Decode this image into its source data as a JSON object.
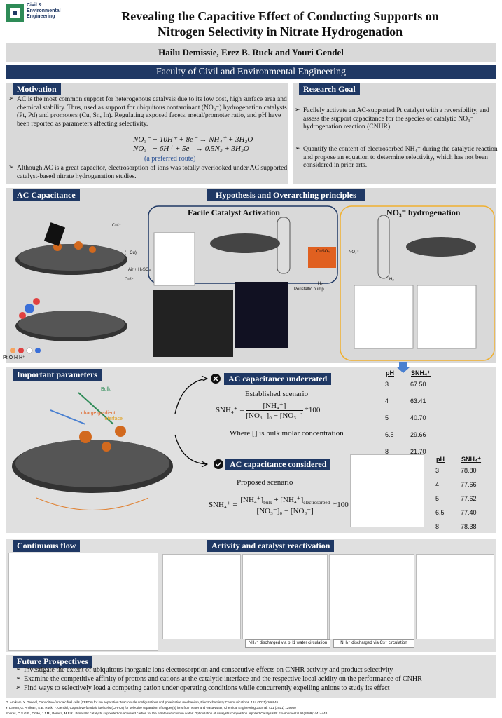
{
  "header": {
    "logo": [
      "Civil &",
      "Environmental",
      "Engineering"
    ],
    "title": [
      "Revealing the Capacitive Effect of Conducting Supports on",
      "Nitrogen Selectivity in Nitrate Hydrogenation"
    ],
    "authors": "Hailu Demissie, Erez B. Ruck and  Youri Gendel",
    "faculty": "Faculty of Civil and Environmental Engineering"
  },
  "motivation": {
    "heading": "Motivation",
    "bullet1": "AC is the most common support for heterogenous catalysis due to its low cost, high surface area and chemical stability. Thus, used as support for ubiquitous contaminant (NO₃⁻) hydrogenation catalysts (Pt, Pd) and promoters (Cu, Sn, In). Regulating exposed facets, metal/promoter ratio, and pH have been reported as parameters affecting selectivity.",
    "equations": [
      "NO₃⁻ + 10H⁺ + 8e⁻ → NH₄⁺ + 3H₂O",
      "NO₃⁻ + 6H⁺ + 5e⁻ → 0.5N₂ + 3H₂O"
    ],
    "note": "(a preferred route)",
    "bullet2": "Although AC is a great capacitor, electrosorption of ions was totally overlooked under AC supported catalyst-based nitrate hydrogenation studies."
  },
  "research_goal": {
    "heading": "Research Goal",
    "bullets": [
      "Facilely activate an AC-supported Pt catalyst with a reversibility, and  assess the support capacitance for the species of catalytic NO₃⁻ hydrogenation reaction (CNHR)",
      "Quantify the content of electrosorbed NH₄⁺ during the catalytic reaction and propose an equation to determine selectivity, which has not been  considered in prior arts."
    ]
  },
  "ac_capacitance": {
    "heading": "AC Capacitance",
    "labels": [
      "Cu²⁺",
      "(+ Cu)",
      "Air + H₂SO₄",
      "Cu²⁺",
      "Pt",
      "O",
      "H",
      "H⁺"
    ]
  },
  "hypothesis": {
    "heading": "Hypothesis and Overarching principles",
    "left": "Facile Catalyst Activation",
    "right": "NO₃⁻ hydrogenation",
    "labels": [
      "CuSO₄",
      "NO₃⁻",
      "H₂",
      "Peristaltic pump",
      "H₂"
    ]
  },
  "important": {
    "heading": "Important parameters",
    "fig_labels": [
      "Bulk",
      "charge gradient",
      "interface"
    ],
    "underrated": {
      "heading": "AC capacitance underrated",
      "scenario": "Established scenario",
      "lhs": "SNH₄⁺ =",
      "numerator": "[NH₄⁺]",
      "denominator": "[NO₃⁻]₀ − [NO₃⁻]",
      "factor": "*100",
      "note": "Where [] is bulk molar concentration"
    },
    "considered": {
      "heading": "AC capacitance considered",
      "scenario": "Proposed scenario",
      "lhs": "SNH₄⁺ =",
      "numerator": [
        "[NH₄⁺]",
        "bulk",
        " + [NH₄⁺]",
        "electrosorbed"
      ],
      "denominator": "[NO₃⁻]₀ − [NO₃⁻]",
      "factor": "*100"
    },
    "table1": {
      "header": [
        "pH",
        "SNH₄⁺"
      ],
      "rows": [
        [
          "3",
          "67.50"
        ],
        [
          "4",
          "63.41"
        ],
        [
          "5",
          "40.70"
        ],
        [
          "6.5",
          "29.66"
        ],
        [
          "8",
          "21.70"
        ]
      ]
    },
    "table2": {
      "header": [
        "pH",
        "SNH₄⁺"
      ],
      "rows": [
        [
          "3",
          "78.80"
        ],
        [
          "4",
          "77.66"
        ],
        [
          "5",
          "77.62"
        ],
        [
          "6.5",
          "77.40"
        ],
        [
          "8",
          "78.38"
        ]
      ]
    }
  },
  "flow": {
    "heading": "Continuous flow"
  },
  "activity": {
    "heading": "Activity and catalyst reactivation",
    "captions": [
      "NH₄⁺ discharged via pH1 water circulation",
      "NH₄⁺ discharged via Cs⁺ circulation"
    ]
  },
  "future": {
    "heading": "Future Prospectives",
    "bullets": [
      "Investigate the extent of ubiquitous inorganic ions electrosorption and consecutive effects on CNHR activity and product selectivity",
      "Examine the competitive affinity of protons and cations at the catalytic interface and the respective local acidity on  the performance of CNHR",
      "Find ways to selectively load a competing cation under operating conditions while concurrently expelling anions to study its effect"
    ]
  },
  "references": [
    "G. Amikam, Y. Gendel, Capacitive-faradaic fuel cells (CFFCs) for ion separation: Macroscale configurations and polarization mechanism, Electrochemistry Communications. 124 (2021) 106945",
    "Y. Darom, G. Amikam, E.B. Ruck, Y. Gendel, Capacitive-faradaic fuel cells (CFFCs) for selective separation of copper(II) ions from water and wastewater, Chemical Engineering Journal. 421 (2021) 129950",
    "Soares, O.S.G.P., Órfão, J.J.M., Pereira, M.F.R., Bimetallic catalysts supported on activated carbon for the nitrate reduction in water: Optimization of catalysts composition. Applied Catalysis B: Environmental 91(2009): 441–448."
  ]
}
